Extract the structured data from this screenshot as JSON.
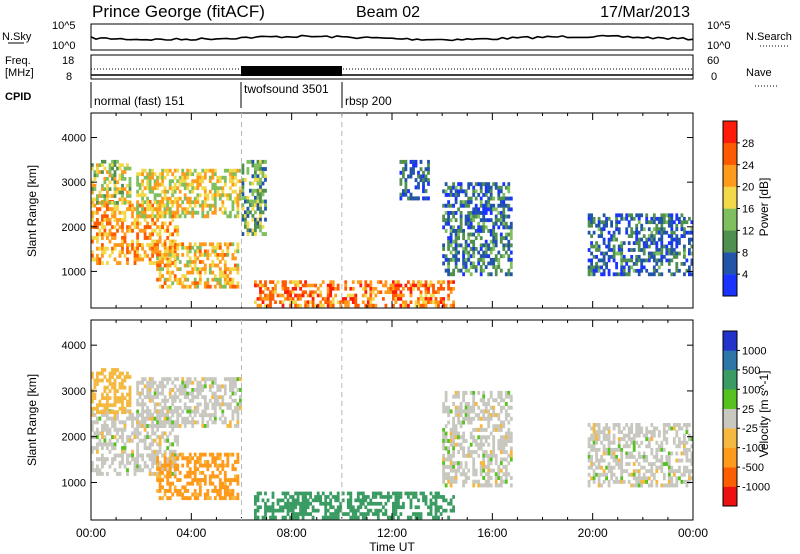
{
  "header": {
    "station": "Prince George (fitACF)",
    "beam": "Beam 02",
    "date": "17/Mar/2013"
  },
  "noise_panel": {
    "left_label": "N.Sky",
    "left_ticks": [
      "10^5",
      "10^0"
    ],
    "right_label": "N.Search",
    "right_ticks": [
      "10^5",
      "10^0"
    ]
  },
  "freq_panel": {
    "left_label_line1": "Freq.",
    "left_label_line2": "[MHz]",
    "left_ticks": [
      "18",
      "8"
    ],
    "right_label": "Nave",
    "right_ticks": [
      "60",
      "0"
    ]
  },
  "cpid_panel": {
    "label": "CPID",
    "segments": [
      {
        "name": "normal (fast) 151",
        "start_hour": 0,
        "end_hour": 6
      },
      {
        "name": "twofsound 3501",
        "start_hour": 6,
        "end_hour": 10
      },
      {
        "name": "rbsp 200",
        "start_hour": 10,
        "end_hour": 24
      }
    ]
  },
  "colors": {
    "power_scale": [
      "#1a33ff",
      "#2255aa",
      "#4f8f4f",
      "#7fbf5f",
      "#f2d94a",
      "#ff9a1a",
      "#ff5a00",
      "#ff1a0a"
    ],
    "velocity_scale": [
      "#ee1111",
      "#ff5e00",
      "#ff9a1a",
      "#f5b840",
      "#c8c8c0",
      "#55c21e",
      "#3a9c63",
      "#2e75a8",
      "#2233cc"
    ]
  },
  "chart_data": [
    {
      "type": "heatmap",
      "title": "",
      "quantity": "Power",
      "xlabel": "",
      "ylabel": "Slant Range [km]",
      "colorbar_label": "Power [dB]",
      "colorbar_ticks": [
        "28",
        "24",
        "20",
        "16",
        "12",
        "8",
        "4"
      ],
      "colorbar_range": [
        0,
        32
      ],
      "x_range_hours": [
        0,
        24
      ],
      "y_range_km": [
        180,
        4550
      ],
      "y_ticks": [
        "1000",
        "2000",
        "3000",
        "4000"
      ],
      "features": [
        {
          "start_hour": 0.0,
          "end_hour": 3.5,
          "range_start_km": 1150,
          "range_end_km": 2600,
          "power_db": 22
        },
        {
          "start_hour": 1.8,
          "end_hour": 6.0,
          "range_start_km": 2200,
          "range_end_km": 3300,
          "power_db": 18
        },
        {
          "start_hour": 2.6,
          "end_hour": 5.9,
          "range_start_km": 620,
          "range_end_km": 1650,
          "power_db": 20
        },
        {
          "start_hour": 0.0,
          "end_hour": 1.6,
          "range_start_km": 2500,
          "range_end_km": 3500,
          "power_db": 16
        },
        {
          "start_hour": 6.0,
          "end_hour": 7.0,
          "range_start_km": 1800,
          "range_end_km": 3500,
          "power_db": 12
        },
        {
          "start_hour": 6.5,
          "end_hour": 14.5,
          "range_start_km": 200,
          "range_end_km": 800,
          "power_db": 24
        },
        {
          "start_hour": 12.3,
          "end_hour": 13.5,
          "range_start_km": 2600,
          "range_end_km": 3500,
          "power_db": 6
        },
        {
          "start_hour": 14.0,
          "end_hour": 16.8,
          "range_start_km": 900,
          "range_end_km": 3000,
          "power_db": 8
        },
        {
          "start_hour": 19.8,
          "end_hour": 24.0,
          "range_start_km": 900,
          "range_end_km": 2300,
          "power_db": 7
        }
      ]
    },
    {
      "type": "heatmap",
      "title": "",
      "quantity": "Velocity",
      "xlabel": "Time UT",
      "ylabel": "Slant Range [km]",
      "colorbar_label": "Velocity [m s^-1]",
      "colorbar_ticks": [
        "1000",
        "500",
        "100",
        "25",
        "-25",
        "-100",
        "-500",
        "-1000"
      ],
      "colorbar_range": [
        -1000,
        1000
      ],
      "x_range_hours": [
        0,
        24
      ],
      "x_ticks": [
        "00:00",
        "04:00",
        "08:00",
        "12:00",
        "16:00",
        "20:00",
        "00:00"
      ],
      "y_range_km": [
        180,
        4550
      ],
      "y_ticks": [
        "1000",
        "2000",
        "3000",
        "4000"
      ],
      "features": [
        {
          "start_hour": 0.0,
          "end_hour": 3.5,
          "range_start_km": 1150,
          "range_end_km": 2600,
          "velocity_ms": 0
        },
        {
          "start_hour": 1.8,
          "end_hour": 6.0,
          "range_start_km": 2200,
          "range_end_km": 3300,
          "velocity_ms": 0
        },
        {
          "start_hour": 2.6,
          "end_hour": 5.9,
          "range_start_km": 620,
          "range_end_km": 1650,
          "velocity_ms": -120
        },
        {
          "start_hour": 0.0,
          "end_hour": 1.6,
          "range_start_km": 2500,
          "range_end_km": 3500,
          "velocity_ms": -60
        },
        {
          "start_hour": 6.5,
          "end_hour": 14.5,
          "range_start_km": 200,
          "range_end_km": 800,
          "velocity_ms": 150
        },
        {
          "start_hour": 14.0,
          "end_hour": 16.8,
          "range_start_km": 900,
          "range_end_km": 3000,
          "velocity_ms": 0
        },
        {
          "start_hour": 19.8,
          "end_hour": 24.0,
          "range_start_km": 900,
          "range_end_km": 2300,
          "velocity_ms": 0
        }
      ]
    }
  ]
}
